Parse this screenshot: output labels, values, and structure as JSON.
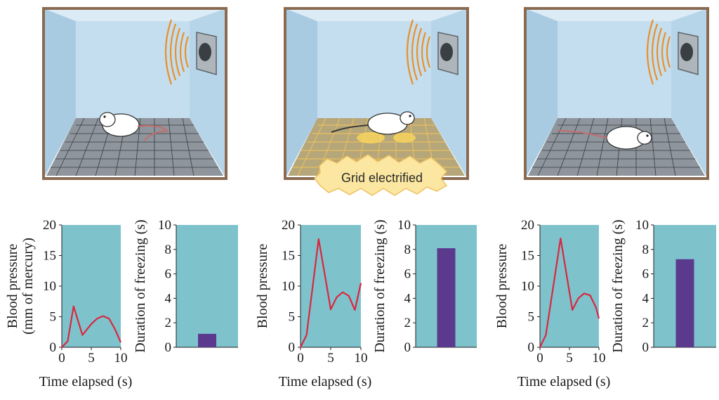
{
  "callout": {
    "label": "Grid electrified"
  },
  "colors": {
    "plot_bg": "#7ec3cc",
    "line": "#d8283f",
    "bar": "#5b3a8e",
    "sound_waves": "#e8912a",
    "burst": "#fbe7a1"
  },
  "chart_data": [
    {
      "type": "line",
      "panel": 1,
      "ylabel_lines": [
        "Blood pressure",
        "(mm of mercury)"
      ],
      "xlabel": "Time elapsed (s)",
      "xlim": [
        0,
        10
      ],
      "ylim": [
        0,
        20
      ],
      "xticks": [
        0,
        5,
        10
      ],
      "yticks": [
        0,
        5,
        10,
        15,
        20
      ],
      "x": [
        0,
        1,
        2,
        3.5,
        5,
        6,
        7,
        8,
        9,
        10
      ],
      "y": [
        0,
        1,
        6.7,
        2,
        3.8,
        4.7,
        5.1,
        4.7,
        3,
        0.8
      ]
    },
    {
      "type": "bar",
      "panel": 1,
      "ylabel": "Duration of freezing (s)",
      "ylim": [
        0,
        10
      ],
      "yticks": [
        0,
        2,
        4,
        6,
        8,
        10
      ],
      "values": [
        1.1
      ]
    },
    {
      "type": "line",
      "panel": 2,
      "ylabel_lines": [
        "Blood pressure"
      ],
      "xlabel": "Time elapsed (s)",
      "xlim": [
        0,
        10
      ],
      "ylim": [
        0,
        20
      ],
      "xticks": [
        0,
        5,
        10
      ],
      "yticks": [
        0,
        5,
        10,
        15,
        20
      ],
      "x": [
        0,
        1,
        3,
        4,
        5,
        6,
        7,
        8,
        9,
        10
      ],
      "y": [
        0,
        2,
        17.7,
        12,
        6.2,
        8.2,
        9,
        8.4,
        6.1,
        10.5
      ]
    },
    {
      "type": "bar",
      "panel": 2,
      "ylabel": "Duration of freezing (s)",
      "ylim": [
        0,
        10
      ],
      "yticks": [
        0,
        2,
        4,
        6,
        8,
        10
      ],
      "values": [
        8.1
      ]
    },
    {
      "type": "line",
      "panel": 3,
      "ylabel_lines": [
        "Blood pressure"
      ],
      "xlabel": "Time elapsed (s)",
      "xlim": [
        0,
        10
      ],
      "ylim": [
        0,
        20
      ],
      "xticks": [
        0,
        5,
        10
      ],
      "yticks": [
        0,
        5,
        10,
        15,
        20
      ],
      "x": [
        0,
        1,
        3.5,
        5,
        5.5,
        6.5,
        7.5,
        8.5,
        9.5,
        10
      ],
      "y": [
        0,
        2,
        17.8,
        9,
        6.1,
        8,
        8.8,
        8.5,
        6.5,
        4.7
      ]
    },
    {
      "type": "bar",
      "panel": 3,
      "ylabel": "Duration of freezing (s)",
      "ylim": [
        0,
        10
      ],
      "yticks": [
        0,
        2,
        4,
        6,
        8,
        10
      ],
      "values": [
        7.2
      ]
    }
  ]
}
